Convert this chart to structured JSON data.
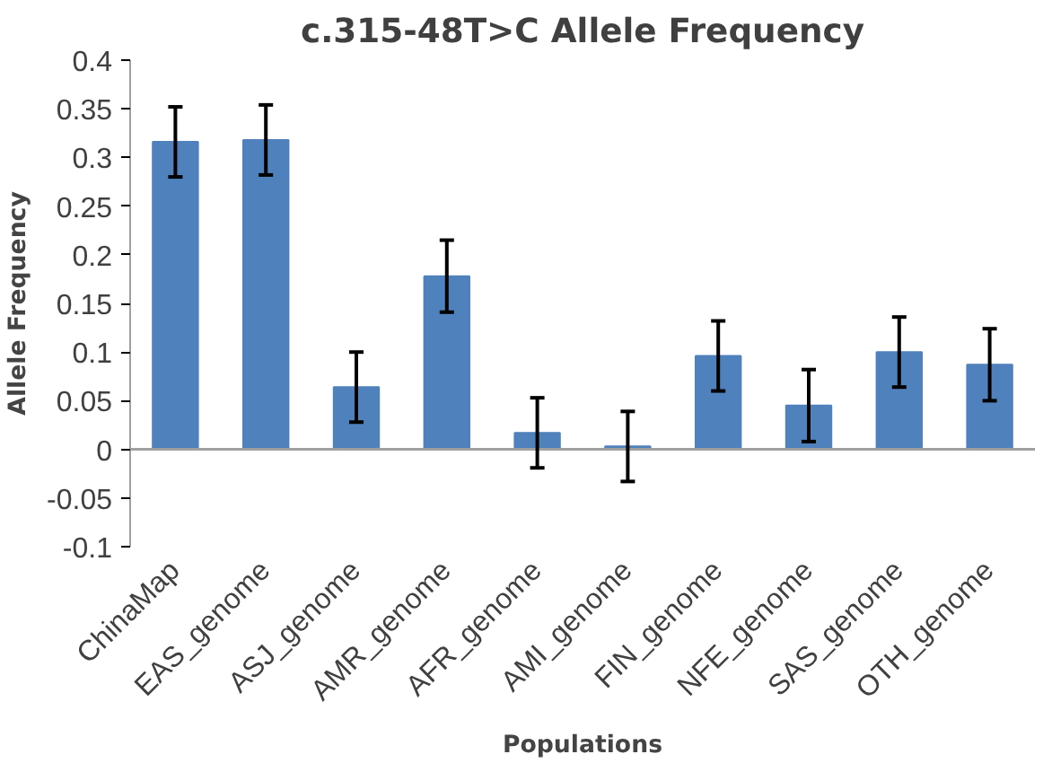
{
  "chart_data": {
    "type": "bar",
    "title": "c.315-48T>C Allele Frequency",
    "xlabel": "Populations",
    "ylabel": "Allele Frequency",
    "categories": [
      "ChinaMap",
      "EAS_genome",
      "ASJ_genome",
      "AMR_genome",
      "AFR_genome",
      "AMI_genome",
      "FIN_genome",
      "NFE_genome",
      "SAS_genome",
      "OTH_genome"
    ],
    "values": [
      0.316,
      0.318,
      0.064,
      0.178,
      0.017,
      0.003,
      0.096,
      0.045,
      0.1,
      0.087
    ],
    "errors": [
      0.036,
      0.036,
      0.036,
      0.037,
      0.036,
      0.036,
      0.036,
      0.037,
      0.036,
      0.037
    ],
    "color": "#4f81bd",
    "ylim": [
      -0.1,
      0.4
    ],
    "yticks": [
      -0.1,
      -0.05,
      0,
      0.05,
      0.1,
      0.15,
      0.2,
      0.25,
      0.3,
      0.35,
      0.4
    ],
    "grid": false,
    "ref_lines": [
      {
        "axis": "y",
        "value": 0,
        "color": "#a0a0a0"
      }
    ]
  }
}
